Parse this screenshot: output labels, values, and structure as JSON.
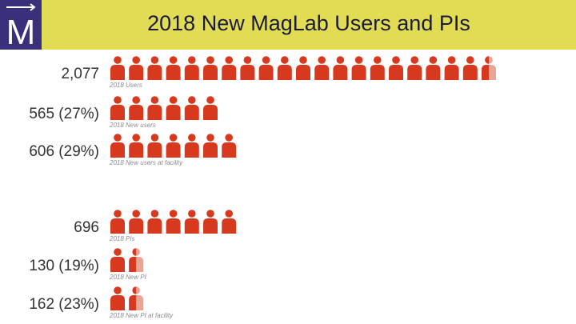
{
  "header": {
    "title": "2018 New MagLab Users and PIs",
    "logo_letter": "M",
    "logo_color": "#3a2f7a",
    "bar_color": "#e1dc54"
  },
  "chart_data": {
    "type": "pictograph",
    "icon": "person-icon",
    "full_color": "#d7391f",
    "partial_color": "#e9a596",
    "rows": [
      {
        "value_label": "2,077",
        "caption": "2018 Users",
        "icons": 20.5
      },
      {
        "value_label": "565 (27%)",
        "caption": "2018 New users",
        "icons": 6
      },
      {
        "value_label": "606 (29%)",
        "caption": "2018 New users at facility",
        "icons": 7
      },
      {
        "value_label": "696",
        "caption": "2018 PIs",
        "icons": 7
      },
      {
        "value_label": "130 (19%)",
        "caption": "2018 New PI",
        "icons": 1.5
      },
      {
        "value_label": "162 (23%)",
        "caption": "2018 New PI at facility",
        "icons": 1.5
      }
    ]
  }
}
